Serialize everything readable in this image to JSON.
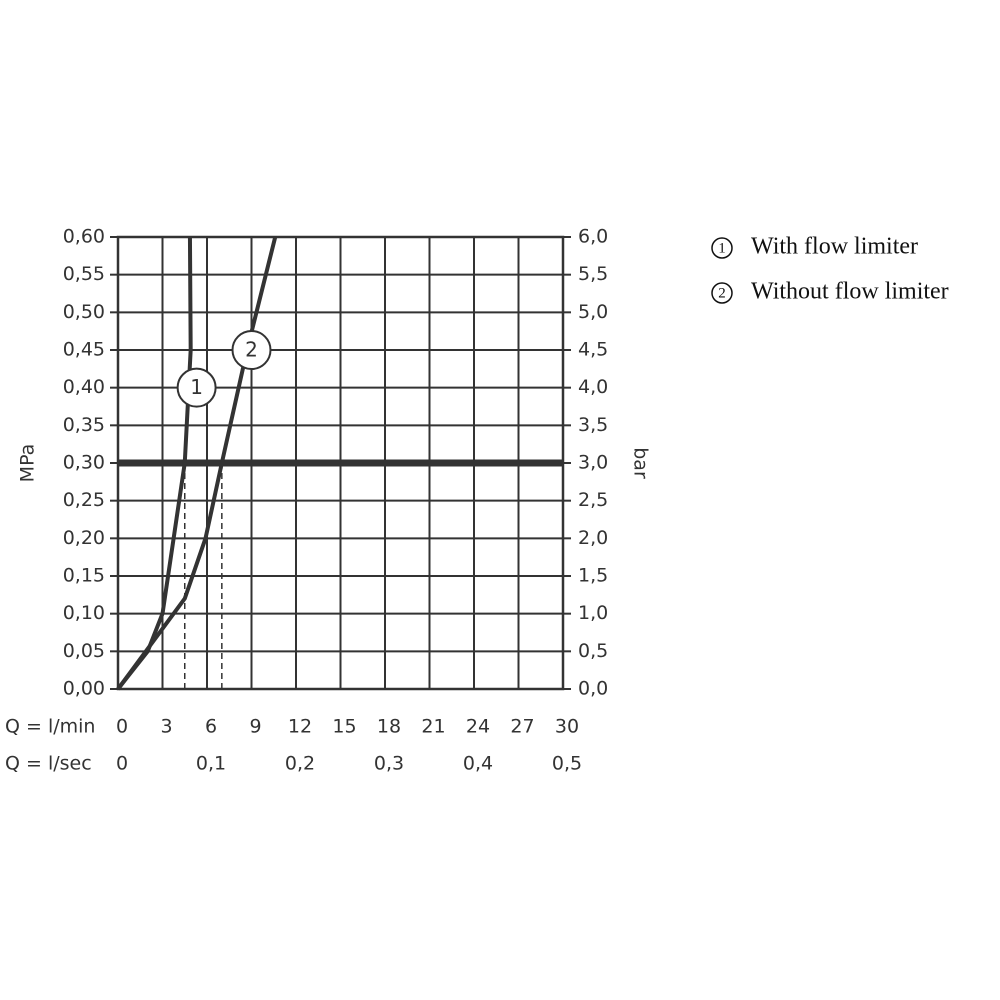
{
  "chart_data": {
    "type": "line",
    "ylabel": "MPa",
    "y2label": "bar",
    "xlabel": "Q = l/min",
    "x2label": "Q = l/sec",
    "xlim": [
      0,
      30
    ],
    "xticks": [
      0,
      3,
      6,
      9,
      12,
      15,
      18,
      21,
      24,
      27,
      30
    ],
    "x2lim": [
      0,
      0.5
    ],
    "x2ticks": [
      0,
      {
        "value": 0.1,
        "label": "0,1"
      },
      {
        "value": 0.2,
        "label": "0,2"
      },
      {
        "value": 0.3,
        "label": "0,3"
      },
      {
        "value": 0.4,
        "label": "0,4"
      },
      {
        "value": 0.5,
        "label": "0,5"
      }
    ],
    "ylim": [
      0,
      0.6
    ],
    "yticks": [
      {
        "value": 0,
        "label": "0,00"
      },
      {
        "value": 0.05,
        "label": "0,05"
      },
      {
        "value": 0.1,
        "label": "0,10"
      },
      {
        "value": 0.15,
        "label": "0,15"
      },
      {
        "value": 0.2,
        "label": "0,20"
      },
      {
        "value": 0.25,
        "label": "0,25"
      },
      {
        "value": 0.3,
        "label": "0,30"
      },
      {
        "value": 0.35,
        "label": "0,35"
      },
      {
        "value": 0.4,
        "label": "0,40"
      },
      {
        "value": 0.45,
        "label": "0,45"
      },
      {
        "value": 0.5,
        "label": "0,50"
      },
      {
        "value": 0.55,
        "label": "0,55"
      },
      {
        "value": 0.6,
        "label": "0,60"
      }
    ],
    "y2lim": [
      0,
      6
    ],
    "y2ticks": [
      {
        "value": 0,
        "label": "0,0"
      },
      {
        "value": 0.5,
        "label": "0,5"
      },
      {
        "value": 1,
        "label": "1,0"
      },
      {
        "value": 1.5,
        "label": "1,5"
      },
      {
        "value": 2,
        "label": "2,0"
      },
      {
        "value": 2.5,
        "label": "2,5"
      },
      {
        "value": 3,
        "label": "3,0"
      },
      {
        "value": 3.5,
        "label": "3,5"
      },
      {
        "value": 4,
        "label": "4,0"
      },
      {
        "value": 4.5,
        "label": "4,5"
      },
      {
        "value": 5,
        "label": "5,0"
      },
      {
        "value": 5.5,
        "label": "5,5"
      },
      {
        "value": 6,
        "label": "6,0"
      }
    ],
    "grid": true,
    "reference_line": 0.3,
    "dashed_x": [
      4.5,
      7.0
    ],
    "series": [
      {
        "name": "With flow limiter",
        "marker": "1",
        "color": "#333333",
        "x": [
          0,
          2,
          3,
          4.5,
          4.9,
          4.85
        ],
        "values": [
          0,
          0.05,
          0.1,
          0.3,
          0.45,
          0.6
        ],
        "annotation_x": 5.3,
        "annotation_y": 0.4
      },
      {
        "name": "Without flow limiter",
        "marker": "2",
        "color": "#333333",
        "x": [
          0,
          3,
          4.5,
          5.9,
          7.0,
          8.7,
          10.6
        ],
        "values": [
          0,
          0.08,
          0.12,
          0.2,
          0.3,
          0.45,
          0.6
        ],
        "annotation_x": 9.0,
        "annotation_y": 0.45
      }
    ]
  }
}
